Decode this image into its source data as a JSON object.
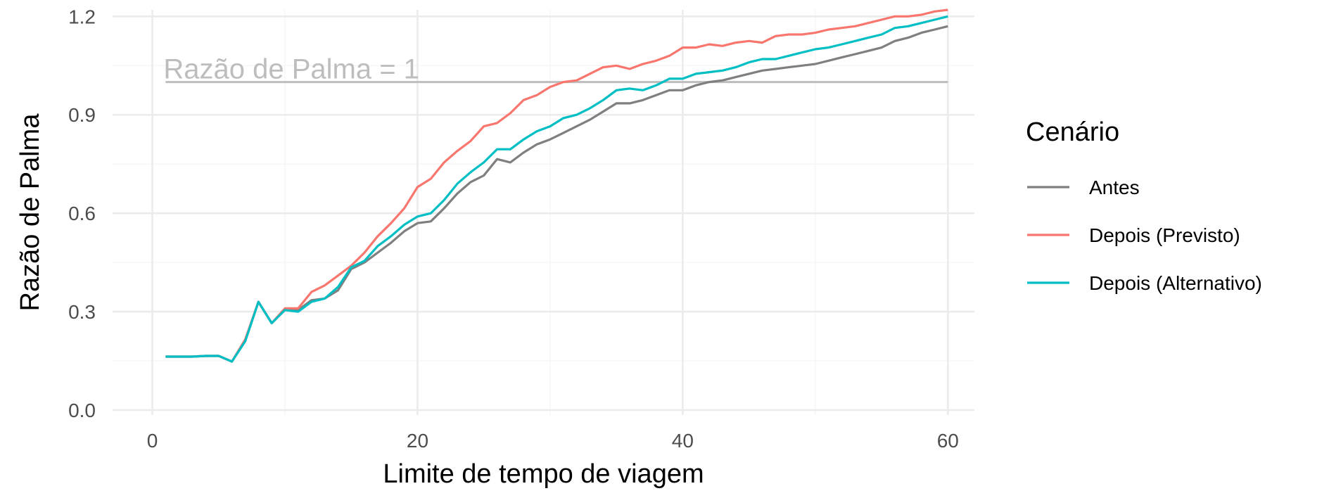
{
  "chart_data": {
    "type": "line",
    "xlabel": "Limite de tempo de viagem",
    "ylabel": "Razão de Palma",
    "xlim": [
      -3,
      62
    ],
    "ylim": [
      -0.015,
      1.22
    ],
    "x_ticks": [
      0,
      20,
      40,
      60
    ],
    "y_ticks": [
      0.0,
      0.3,
      0.6,
      0.9,
      1.2
    ],
    "x_tick_labels": [
      "0",
      "20",
      "40",
      "60"
    ],
    "y_tick_labels": [
      "0.0",
      "0.3",
      "0.6",
      "0.9",
      "1.2"
    ],
    "grid": true,
    "legend": {
      "title": "Cenário",
      "position": "right"
    },
    "reference_line": {
      "y": 1.0,
      "label": "Razão de Palma = 1",
      "color": "#bdbdbd"
    },
    "x": [
      1,
      2,
      3,
      4,
      5,
      6,
      7,
      8,
      9,
      10,
      11,
      12,
      13,
      14,
      15,
      16,
      17,
      18,
      19,
      20,
      21,
      22,
      23,
      24,
      25,
      26,
      27,
      28,
      29,
      30,
      31,
      32,
      33,
      34,
      35,
      36,
      37,
      38,
      39,
      40,
      41,
      42,
      43,
      44,
      45,
      46,
      47,
      48,
      49,
      50,
      51,
      52,
      53,
      54,
      55,
      56,
      57,
      58,
      59,
      60
    ],
    "series": [
      {
        "name": "Antes",
        "color": "#7f7f7f",
        "values": [
          0.163,
          0.163,
          0.163,
          0.165,
          0.165,
          0.148,
          0.21,
          0.33,
          0.265,
          0.305,
          0.305,
          0.335,
          0.34,
          0.365,
          0.43,
          0.45,
          0.48,
          0.51,
          0.545,
          0.57,
          0.575,
          0.615,
          0.66,
          0.695,
          0.715,
          0.765,
          0.755,
          0.785,
          0.81,
          0.825,
          0.845,
          0.865,
          0.885,
          0.91,
          0.935,
          0.935,
          0.945,
          0.96,
          0.975,
          0.975,
          0.99,
          1.0,
          1.005,
          1.015,
          1.025,
          1.035,
          1.04,
          1.045,
          1.05,
          1.055,
          1.065,
          1.075,
          1.085,
          1.095,
          1.105,
          1.125,
          1.135,
          1.15,
          1.16,
          1.17
        ]
      },
      {
        "name": "Depois (Previsto)",
        "color": "#f8766d",
        "values": [
          0.163,
          0.163,
          0.163,
          0.165,
          0.165,
          0.148,
          0.215,
          0.33,
          0.265,
          0.31,
          0.31,
          0.36,
          0.38,
          0.41,
          0.44,
          0.48,
          0.53,
          0.57,
          0.615,
          0.68,
          0.705,
          0.755,
          0.79,
          0.82,
          0.865,
          0.875,
          0.905,
          0.945,
          0.96,
          0.985,
          1.0,
          1.005,
          1.025,
          1.045,
          1.05,
          1.04,
          1.055,
          1.065,
          1.08,
          1.105,
          1.105,
          1.115,
          1.11,
          1.12,
          1.125,
          1.12,
          1.14,
          1.145,
          1.145,
          1.15,
          1.16,
          1.165,
          1.17,
          1.18,
          1.19,
          1.2,
          1.2,
          1.205,
          1.215,
          1.22
        ]
      },
      {
        "name": "Depois (Alternativo)",
        "color": "#00bfc4",
        "values": [
          0.163,
          0.163,
          0.163,
          0.165,
          0.165,
          0.148,
          0.21,
          0.33,
          0.265,
          0.305,
          0.3,
          0.33,
          0.34,
          0.375,
          0.435,
          0.455,
          0.5,
          0.53,
          0.565,
          0.59,
          0.6,
          0.64,
          0.69,
          0.725,
          0.755,
          0.795,
          0.795,
          0.825,
          0.85,
          0.865,
          0.89,
          0.9,
          0.92,
          0.945,
          0.975,
          0.98,
          0.975,
          0.99,
          1.01,
          1.01,
          1.025,
          1.03,
          1.035,
          1.045,
          1.06,
          1.07,
          1.07,
          1.08,
          1.09,
          1.1,
          1.105,
          1.115,
          1.125,
          1.135,
          1.145,
          1.165,
          1.17,
          1.18,
          1.19,
          1.2
        ]
      }
    ]
  }
}
